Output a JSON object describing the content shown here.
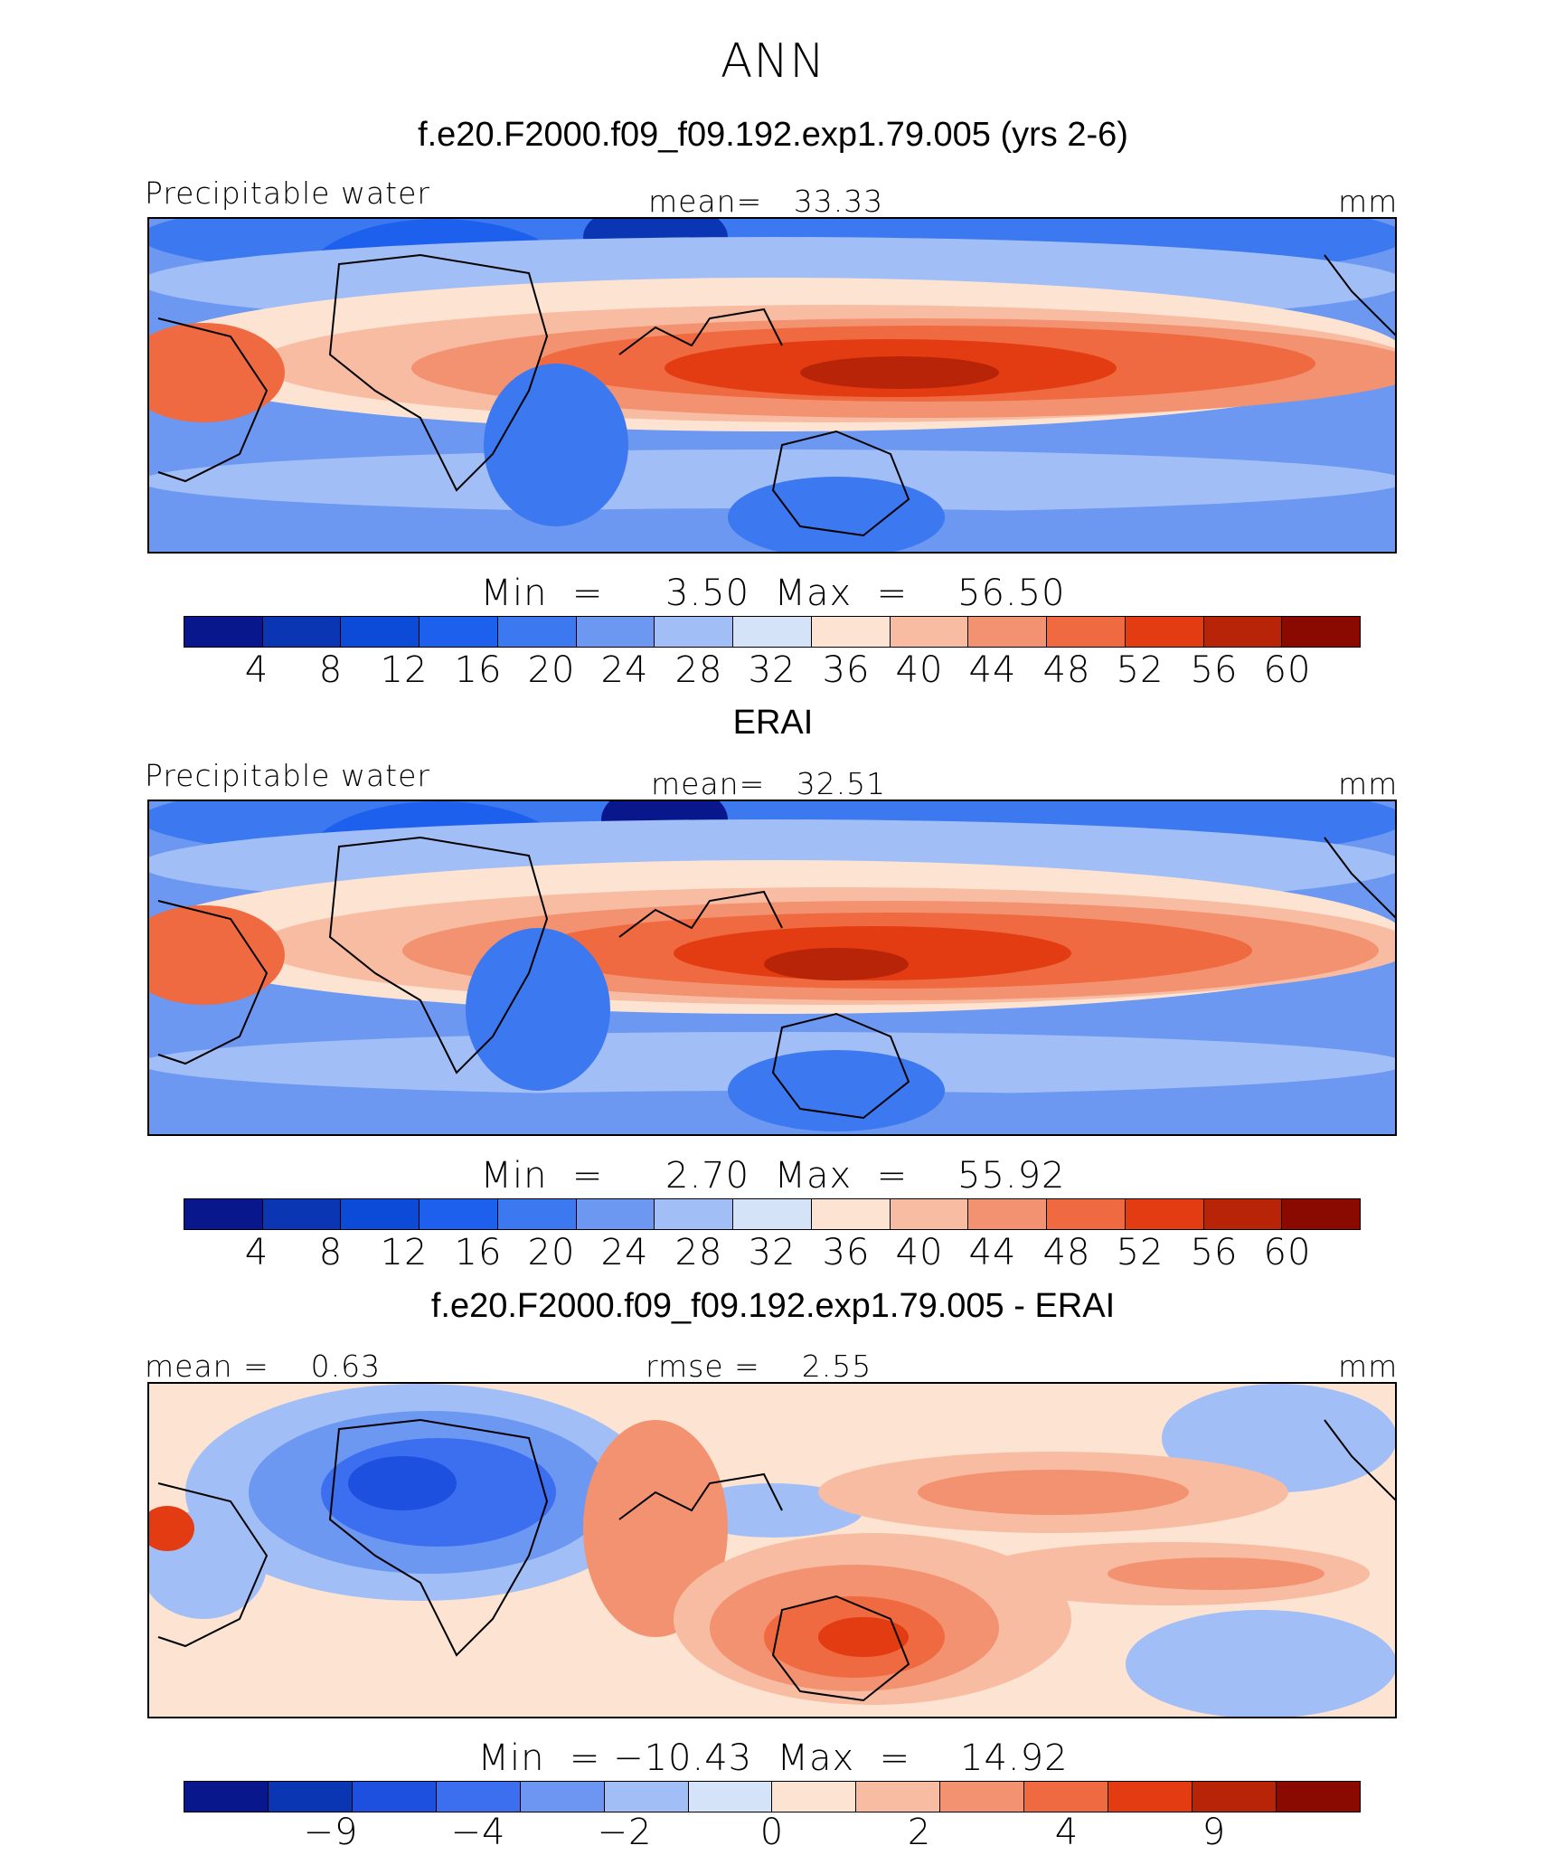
{
  "figure": {
    "title": "ANN"
  },
  "chart_data": [
    {
      "type": "heatmap",
      "title": "f.e20.F2000.f09_f09.192.exp1.79.005 (yrs 2-6)",
      "variable": "Precipitable water",
      "stat_label": "mean=   33.33",
      "units": "mm",
      "minmax": "Min  =     3.50  Max  =    56.50",
      "min": 3.5,
      "max": 56.5,
      "mean": 33.33,
      "colorbar_levels": [
        "4",
        "8",
        "12",
        "16",
        "20",
        "24",
        "28",
        "32",
        "36",
        "40",
        "44",
        "48",
        "52",
        "56",
        "60"
      ],
      "colormap": [
        "#08188c",
        "#0a36b4",
        "#0c4ad8",
        "#1e60ee",
        "#3c78ef",
        "#6c98f2",
        "#a2bef6",
        "#d4e3f8",
        "#fde4d2",
        "#f8bca2",
        "#f39270",
        "#ef6a40",
        "#e33c12",
        "#b82408",
        "#8a0a02"
      ]
    },
    {
      "type": "heatmap",
      "title": "ERAI",
      "variable": "Precipitable water",
      "stat_label": "mean=   32.51",
      "units": "mm",
      "minmax": "Min  =     2.70  Max  =    55.92",
      "min": 2.7,
      "max": 55.92,
      "mean": 32.51,
      "colorbar_levels": [
        "4",
        "8",
        "12",
        "16",
        "20",
        "24",
        "28",
        "32",
        "36",
        "40",
        "44",
        "48",
        "52",
        "56",
        "60"
      ],
      "colormap": [
        "#08188c",
        "#0a36b4",
        "#0c4ad8",
        "#1e60ee",
        "#3c78ef",
        "#6c98f2",
        "#a2bef6",
        "#d4e3f8",
        "#fde4d2",
        "#f8bca2",
        "#f39270",
        "#ef6a40",
        "#e33c12",
        "#b82408",
        "#8a0a02"
      ]
    },
    {
      "type": "heatmap",
      "title": "f.e20.F2000.f09_f09.192.exp1.79.005 - ERAI",
      "stat_label": "mean =    0.63",
      "stat_label2": "rmse =    2.55",
      "units": "mm",
      "minmax": "Min  = −10.43  Max  =    14.92",
      "min": -10.43,
      "max": 14.92,
      "mean": 0.63,
      "rmse": 2.55,
      "colorbar_levels": [
        "−9",
        "",
        "−4",
        "",
        "−2",
        "",
        "0",
        "",
        "2",
        "",
        "4",
        "",
        "9"
      ],
      "colormap": [
        "#08188c",
        "#0a36b4",
        "#1e50e0",
        "#3c6ef0",
        "#6c96f2",
        "#a2bef6",
        "#d4e3f8",
        "#fde4d2",
        "#f8bca2",
        "#f39270",
        "#ef6a40",
        "#e33c12",
        "#b82408",
        "#8a0a02"
      ]
    }
  ]
}
